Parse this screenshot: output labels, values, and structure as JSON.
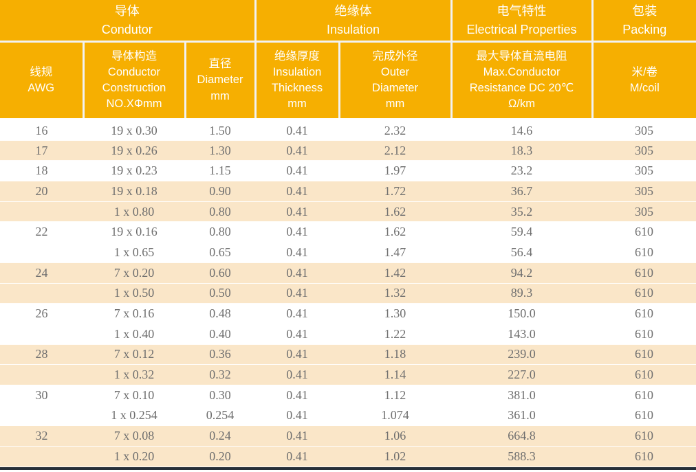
{
  "table": {
    "header": {
      "groups": [
        {
          "label": "导体\nCondutor"
        },
        {
          "label": "绝缘体\nInsulation"
        },
        {
          "label": "电气特性\nElectrical Properties"
        },
        {
          "label": "包装\nPacking"
        }
      ],
      "columns": [
        {
          "label": "线规\nAWG"
        },
        {
          "label": "导体构造\nConductor\nConstruction\nNO.XΦmm"
        },
        {
          "label": "直径\nDiameter\nmm"
        },
        {
          "label": "绝缘厚度\nInsulation\nThickness\nmm"
        },
        {
          "label": "完成外径\nOuter\nDiameter\nmm"
        },
        {
          "label": "最大导体直流电阻\nMax.Conductor\nResistance DC 20℃\nΩ/km"
        },
        {
          "label": "米/卷\nM/coil"
        }
      ]
    },
    "fields": [
      "awg",
      "construction",
      "diameter",
      "insulation-thickness",
      "outer-diameter",
      "resistance",
      "m-per-coil"
    ],
    "rows": [
      {
        "shade": false,
        "cells": [
          "16",
          "19 x 0.30",
          "1.50",
          "0.41",
          "2.32",
          "14.6",
          "305"
        ]
      },
      {
        "shade": true,
        "cells": [
          "17",
          "19 x 0.26",
          "1.30",
          "0.41",
          "2.12",
          "18.3",
          "305"
        ]
      },
      {
        "shade": false,
        "cells": [
          "18",
          "19 x 0.23",
          "1.15",
          "0.41",
          "1.97",
          "23.2",
          "305"
        ]
      },
      {
        "shade": true,
        "cells": [
          "20",
          "19 x 0.18",
          "0.90",
          "0.41",
          "1.72",
          "36.7",
          "305"
        ]
      },
      {
        "shade": true,
        "cells": [
          "",
          "1 x 0.80",
          "0.80",
          "0.41",
          "1.62",
          "35.2",
          "305"
        ]
      },
      {
        "shade": false,
        "cells": [
          "22",
          "19 x 0.16",
          "0.80",
          "0.41",
          "1.62",
          "59.4",
          "610"
        ]
      },
      {
        "shade": false,
        "cells": [
          "",
          "1 x 0.65",
          "0.65",
          "0.41",
          "1.47",
          "56.4",
          "610"
        ]
      },
      {
        "shade": true,
        "cells": [
          "24",
          "7 x 0.20",
          "0.60",
          "0.41",
          "1.42",
          "94.2",
          "610"
        ]
      },
      {
        "shade": true,
        "cells": [
          "",
          "1 x 0.50",
          "0.50",
          "0.41",
          "1.32",
          "89.3",
          "610"
        ]
      },
      {
        "shade": false,
        "cells": [
          "26",
          "7 x 0.16",
          "0.48",
          "0.41",
          "1.30",
          "150.0",
          "610"
        ]
      },
      {
        "shade": false,
        "cells": [
          "",
          "1 x 0.40",
          "0.40",
          "0.41",
          "1.22",
          "143.0",
          "610"
        ]
      },
      {
        "shade": true,
        "cells": [
          "28",
          "7 x 0.12",
          "0.36",
          "0.41",
          "1.18",
          "239.0",
          "610"
        ]
      },
      {
        "shade": true,
        "cells": [
          "",
          "1 x 0.32",
          "0.32",
          "0.41",
          "1.14",
          "227.0",
          "610"
        ]
      },
      {
        "shade": false,
        "cells": [
          "30",
          "7 x 0.10",
          "0.30",
          "0.41",
          "1.12",
          "381.0",
          "610"
        ]
      },
      {
        "shade": false,
        "cells": [
          "",
          "1 x 0.254",
          "0.254",
          "0.41",
          "1.074",
          "361.0",
          "610"
        ]
      },
      {
        "shade": true,
        "cells": [
          "32",
          "7 x 0.08",
          "0.24",
          "0.41",
          "1.06",
          "664.8",
          "610"
        ]
      },
      {
        "shade": true,
        "cells": [
          "",
          "1 x 0.20",
          "0.20",
          "0.41",
          "1.02",
          "588.3",
          "610"
        ]
      }
    ]
  },
  "colors": {
    "header_background": "#F6AF01",
    "header_text": "#FFFFFF",
    "row_shade": "#FAE6C8",
    "row_text": "#6E6E6E",
    "divider": "#F2F2F2",
    "bottom_rule": "#273039"
  }
}
